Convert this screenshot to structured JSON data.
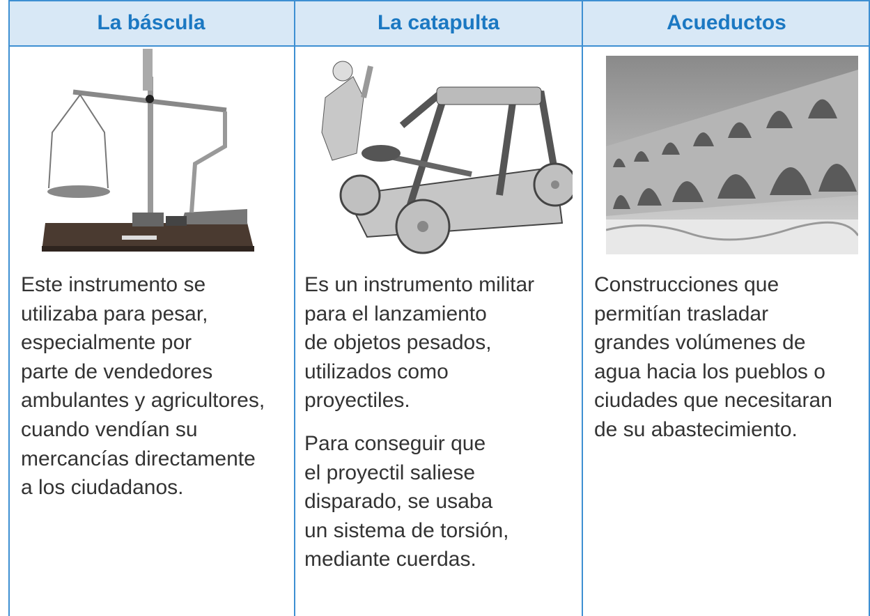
{
  "table": {
    "headers": [
      "La báscula",
      "La catapulta",
      "Acueductos"
    ],
    "cells": [
      {
        "paragraphs": [
          [
            "Este instrumento se",
            "utilizaba para pesar,",
            "especialmente por",
            "parte de vendedores",
            "ambulantes y agricultores,",
            "cuando vendían su",
            "mercancías directamente",
            "a los ciudadanos."
          ]
        ]
      },
      {
        "paragraphs": [
          [
            "Es un instrumento militar",
            "para el lanzamiento",
            "de objetos pesados,",
            "utilizados como",
            "proyectiles."
          ],
          [
            "Para conseguir que",
            "el proyectil saliese",
            "disparado, se usaba",
            "un sistema de torsión,",
            "mediante cuerdas."
          ]
        ]
      },
      {
        "paragraphs": [
          [
            "Construcciones que",
            "permitían trasladar",
            "grandes volúmenes de",
            "agua hacia los pueblos o",
            "ciudades que necesitaran",
            "de su abastecimiento."
          ]
        ]
      }
    ]
  }
}
